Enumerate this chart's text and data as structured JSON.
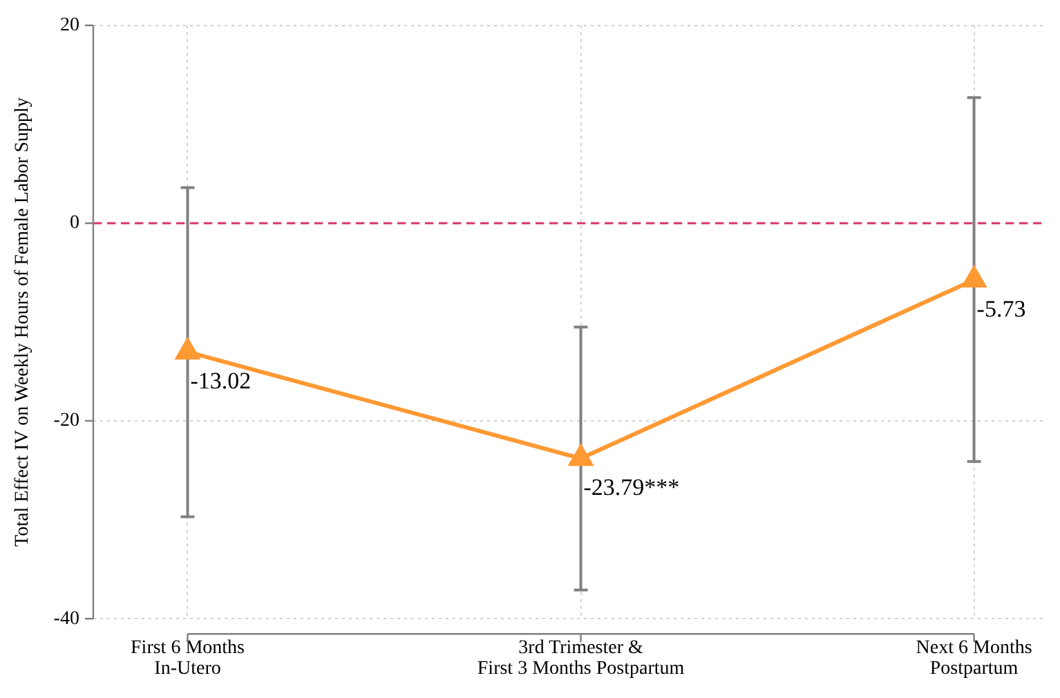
{
  "chart_data": {
    "type": "line",
    "ylabel": "Total Effect IV on Weekly Hours of Female Labor Supply",
    "categories": [
      "First 6 Months\nIn-Utero",
      "3rd Trimester &\nFirst 3 Months Postpartum",
      "Next 6 Months\nPostpartum"
    ],
    "series": [
      {
        "color": "#ff9933",
        "values": [
          -13.02,
          -23.79,
          -5.73
        ],
        "errors": [
          [
            -29.7,
            3.6
          ],
          [
            -37.1,
            -10.5
          ],
          [
            -24.1,
            12.7
          ]
        ],
        "value_labels": [
          "-13.02",
          "-23.79***",
          "-5.73"
        ]
      }
    ],
    "ylim": [
      -40,
      20
    ],
    "yticks": [
      -40,
      -20,
      0,
      20
    ],
    "grid": true,
    "legend": false,
    "marker": "triangle",
    "line_style": "solid",
    "ref_lines": [
      {
        "axis": "y",
        "value": 0,
        "color": "#d6336c",
        "line_style": "dashed"
      }
    ]
  }
}
